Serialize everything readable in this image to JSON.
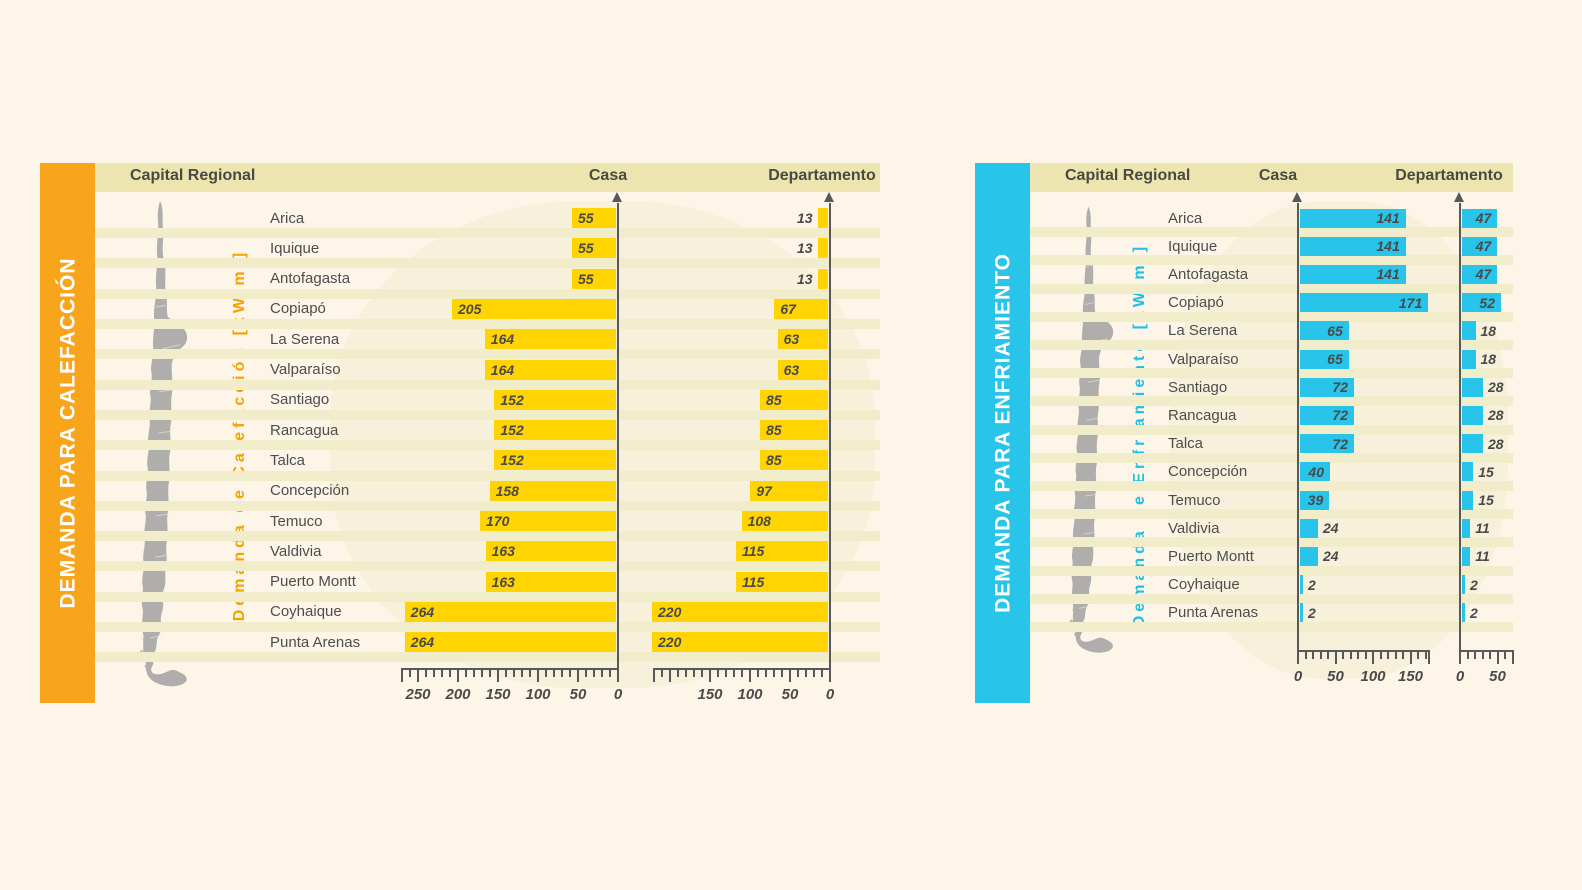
{
  "page": {
    "background": "#FDF6E8",
    "stripe_color": "#F1ECCA",
    "header_band_color": "#ECE5AF",
    "map_color": "#AFAEAC",
    "text_color": "#4D4D4D",
    "axis_color": "#58585A"
  },
  "chart_data": [
    {
      "id": "demanda-calefaccion",
      "type": "bar",
      "orientation": "horizontal",
      "bars_direction": "left",
      "banner_title": "DEMANDA PARA CALEFACCIÓN",
      "axis_title": "Demanda de Calefacción [kW/m²]",
      "unit": "kW/m²",
      "header": {
        "capital_regional": "Capital Regional",
        "casa": "Casa",
        "departamento": "Departamento"
      },
      "categories": [
        "Arica",
        "Iquique",
        "Antofagasta",
        "Copiapó",
        "La Serena",
        "Valparaíso",
        "Santiago",
        "Rancagua",
        "Talca",
        "Concepción",
        "Temuco",
        "Valdivia",
        "Puerto Montt",
        "Coyhaique",
        "Punta Arenas"
      ],
      "series": [
        {
          "name": "Casa",
          "values": [
            55,
            55,
            55,
            205,
            164,
            164,
            152,
            152,
            152,
            158,
            170,
            163,
            163,
            264,
            264
          ],
          "axis_max": 270,
          "tick_minor": 10,
          "tick_major": 50,
          "tick_labels": [
            250,
            200,
            150,
            100,
            50,
            0
          ]
        },
        {
          "name": "Departamento",
          "values": [
            13,
            13,
            13,
            67,
            63,
            63,
            85,
            85,
            85,
            97,
            108,
            115,
            115,
            220,
            220
          ],
          "axis_max": 220,
          "tick_minor": 10,
          "tick_major": 50,
          "tick_labels": [
            150,
            100,
            50,
            0
          ]
        }
      ],
      "colors": {
        "bar": "#FFD400",
        "banner": "#F9A51C",
        "axis_title": "#F5A200"
      }
    },
    {
      "id": "demanda-enfriamiento",
      "type": "bar",
      "orientation": "horizontal",
      "bars_direction": "right",
      "banner_title": "DEMANDA PARA ENFRIAMIENTO",
      "axis_title": "Demanda de Enfriamiento [kW/m²]",
      "unit": "kW/m²",
      "header": {
        "capital_regional": "Capital Regional",
        "casa": "Casa",
        "departamento": "Departamento"
      },
      "categories": [
        "Arica",
        "Iquique",
        "Antofagasta",
        "Copiapó",
        "La Serena",
        "Valparaíso",
        "Santiago",
        "Rancagua",
        "Talca",
        "Concepción",
        "Temuco",
        "Valdivia",
        "Puerto Montt",
        "Coyhaique",
        "Punta Arenas"
      ],
      "series": [
        {
          "name": "Casa",
          "values": [
            141,
            141,
            141,
            171,
            65,
            65,
            72,
            72,
            72,
            40,
            39,
            24,
            24,
            2,
            2
          ],
          "axis_max": 175,
          "tick_minor": 10,
          "tick_major": 50,
          "tick_labels": [
            0,
            50,
            100,
            150
          ]
        },
        {
          "name": "Departamento",
          "values": [
            47,
            47,
            47,
            52,
            18,
            18,
            28,
            28,
            28,
            15,
            15,
            11,
            11,
            2,
            2
          ],
          "axis_max": 70,
          "tick_minor": 10,
          "tick_major": 50,
          "tick_labels": [
            0,
            50
          ]
        }
      ],
      "colors": {
        "bar": "#28C4E9",
        "banner": "#28C4E9",
        "axis_title": "#1FBFE8"
      }
    }
  ]
}
